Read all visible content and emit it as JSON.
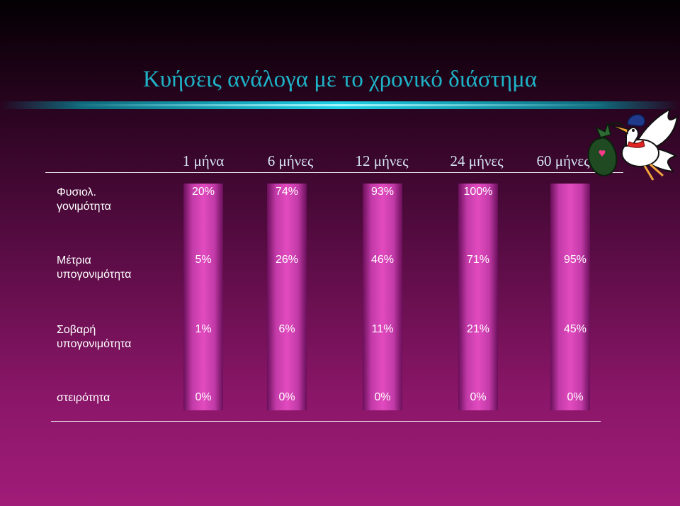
{
  "title": "Κυήσεις ανάλογα με το χρονικό διάστημα",
  "table": {
    "columns": [
      "1 μήνα",
      "6 μήνες",
      "12 μήνες",
      "24 μήνες",
      "60 μήνες"
    ],
    "rows": [
      {
        "label_lines": [
          "Φυσιολ.",
          "γονιμότητα"
        ],
        "values": [
          "20%",
          "74%",
          "93%",
          "100%",
          ""
        ]
      },
      {
        "label_lines": [
          "Μέτρια",
          "υπογονιμότητα"
        ],
        "values": [
          "5%",
          "26%",
          "46%",
          "71%",
          "95%"
        ]
      },
      {
        "label_lines": [
          "Σοβαρή",
          "υπογονιμότητα"
        ],
        "values": [
          "1%",
          "6%",
          "11%",
          "21%",
          "45%"
        ]
      },
      {
        "label_lines": [
          "στειρότητα"
        ],
        "values": [
          "0%",
          "0%",
          "0%",
          "0%",
          "0%"
        ]
      }
    ]
  },
  "colors": {
    "title": "#1fb3c8",
    "bar": "#e24bbf",
    "header_text": "#d6e6f4"
  },
  "decoration": {
    "icon": "stork-carrying-baby-bundle"
  }
}
